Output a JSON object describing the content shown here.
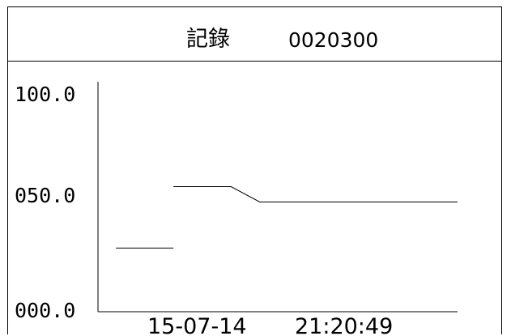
{
  "header": {
    "title": "記錄",
    "record_id": "0020300"
  },
  "footer": {
    "date": "15-07-14",
    "time": "21:20:49"
  },
  "chart_data": {
    "type": "line",
    "title": "",
    "xlabel": "",
    "ylabel": "",
    "ylim": [
      0,
      100
    ],
    "y_ticks": [
      "100.0",
      "050.0",
      "000.0"
    ],
    "y_tick_values": [
      100,
      50,
      0
    ],
    "grid": false,
    "series": [
      {
        "segments": [
          {
            "x": [
              0.05,
              0.21
            ],
            "y": [
              29,
              29
            ]
          },
          {
            "x": [
              0.21,
              0.37,
              0.45,
              1.0
            ],
            "y": [
              57,
              57,
              50,
              50
            ]
          }
        ]
      }
    ],
    "line_color": "#000000"
  }
}
